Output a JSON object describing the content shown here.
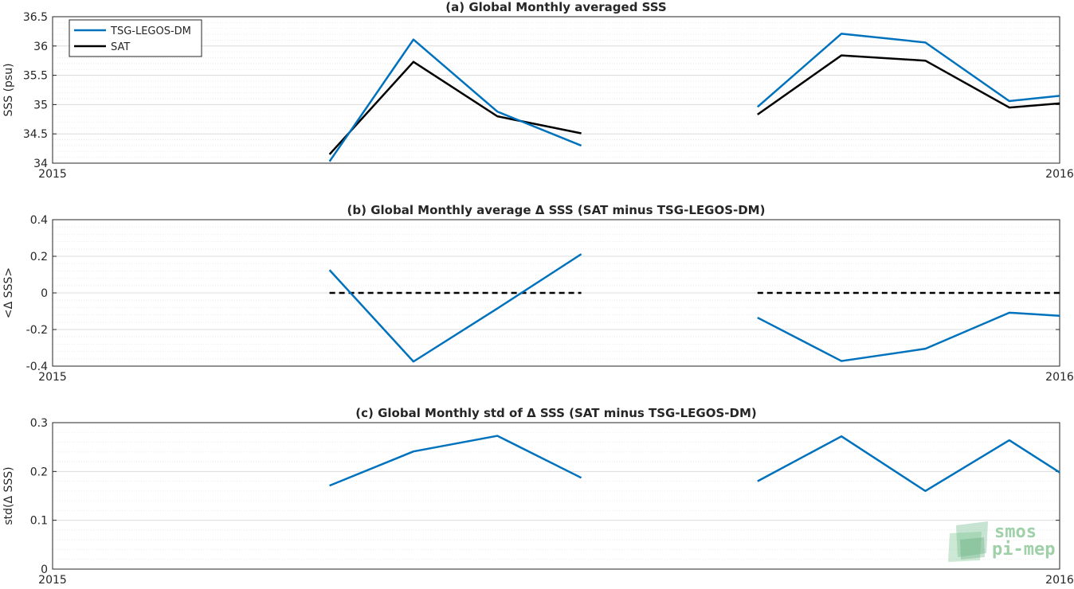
{
  "chart_data": [
    {
      "type": "line",
      "title": "(a) Global Monthly averaged SSS",
      "ylabel": "SSS (psu)",
      "xlim": [
        0,
        12
      ],
      "ylim": [
        34,
        36.5
      ],
      "yticks": [
        "34",
        "34.5",
        "35",
        "35.5",
        "36",
        "36.5"
      ],
      "xticklabels": [
        "2015",
        "2016"
      ],
      "grid": true,
      "legend_position": "top-left",
      "series": [
        {
          "name": "TSG-LEGOS-DM",
          "color": "#0072bd",
          "segments": [
            [
              [
                3.3,
                34.03
              ],
              [
                4.3,
                36.11
              ],
              [
                5.3,
                34.88
              ],
              [
                6.3,
                34.3
              ]
            ],
            [
              [
                8.4,
                34.96
              ],
              [
                9.4,
                36.21
              ],
              [
                10.4,
                36.06
              ],
              [
                11.4,
                35.06
              ],
              [
                12.0,
                35.15
              ]
            ]
          ]
        },
        {
          "name": "SAT",
          "color": "#000000",
          "segments": [
            [
              [
                3.3,
                34.15
              ],
              [
                4.3,
                35.73
              ],
              [
                5.3,
                34.8
              ],
              [
                6.3,
                34.51
              ]
            ],
            [
              [
                8.4,
                34.83
              ],
              [
                9.4,
                35.84
              ],
              [
                10.4,
                35.75
              ],
              [
                11.4,
                34.95
              ],
              [
                12.0,
                35.02
              ]
            ]
          ]
        }
      ]
    },
    {
      "type": "line",
      "title": "(b) Global Monthly average Δ SSS (SAT minus TSG-LEGOS-DM)",
      "ylabel": "<Δ SSS>",
      "xlim": [
        0,
        12
      ],
      "ylim": [
        -0.4,
        0.4
      ],
      "yticks": [
        "-0.4",
        "-0.2",
        "0",
        "0.2",
        "0.4"
      ],
      "xticklabels": [
        "2015",
        "2016"
      ],
      "grid": true,
      "series": [
        {
          "color": "#0072bd",
          "segments": [
            [
              [
                3.3,
                0.125
              ],
              [
                4.3,
                -0.375
              ],
              [
                5.3,
                -0.085
              ],
              [
                6.3,
                0.212
              ]
            ],
            [
              [
                8.4,
                -0.135
              ],
              [
                9.4,
                -0.372
              ],
              [
                10.4,
                -0.305
              ],
              [
                11.4,
                -0.108
              ],
              [
                12.0,
                -0.125
              ]
            ]
          ]
        }
      ],
      "reference_lines": [
        {
          "style": "dashed",
          "color": "#000000",
          "segments": [
            [
              [
                3.3,
                0
              ],
              [
                6.3,
                0
              ]
            ],
            [
              [
                8.4,
                0
              ],
              [
                12.0,
                0
              ]
            ]
          ]
        }
      ]
    },
    {
      "type": "line",
      "title": "(c) Global Monthly std of Δ SSS (SAT minus TSG-LEGOS-DM)",
      "ylabel": "std(Δ SSS)",
      "xlim": [
        0,
        12
      ],
      "ylim": [
        0,
        0.3
      ],
      "yticks": [
        "0",
        "0.1",
        "0.2",
        "0.3"
      ],
      "xticklabels": [
        "2015",
        "2016"
      ],
      "grid": true,
      "series": [
        {
          "color": "#0072bd",
          "segments": [
            [
              [
                3.3,
                0.171
              ],
              [
                4.3,
                0.241
              ],
              [
                5.3,
                0.273
              ],
              [
                6.3,
                0.187
              ]
            ],
            [
              [
                8.4,
                0.18
              ],
              [
                9.4,
                0.272
              ],
              [
                10.4,
                0.16
              ],
              [
                11.4,
                0.264
              ],
              [
                12.0,
                0.198
              ]
            ]
          ]
        }
      ]
    }
  ],
  "logo": {
    "line1": "smos",
    "line2": "pi-mep"
  }
}
